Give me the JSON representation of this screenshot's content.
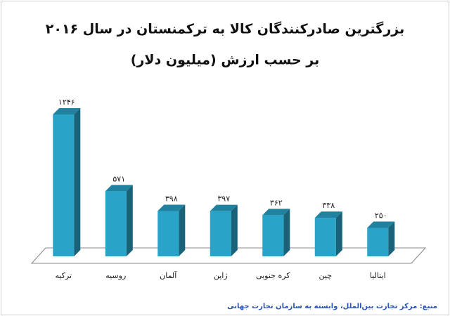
{
  "chart_data": {
    "type": "bar3d",
    "title": "بزرگترین صادرکنندگان کالا به ترکمنستان در سال ۲۰۱۶",
    "subtitle": "بر حسب ارزش (میلیون دلار)",
    "categories": [
      "ترکیه",
      "روسیه",
      "آلمان",
      "ژاپن",
      "کره جنوبی",
      "چین",
      "ایتالیا"
    ],
    "values": [
      1246,
      571,
      398,
      397,
      362,
      338,
      250
    ],
    "value_labels": [
      "۱۲۴۶",
      "۵۷۱",
      "۳۹۸",
      "۳۹۷",
      "۳۶۲",
      "۳۳۸",
      "۲۵۰"
    ],
    "color": "#2aa3c9",
    "source": "منبع: مرکز تجارت بین‌الملل، وابسته به سازمان تجارت جهانی"
  }
}
